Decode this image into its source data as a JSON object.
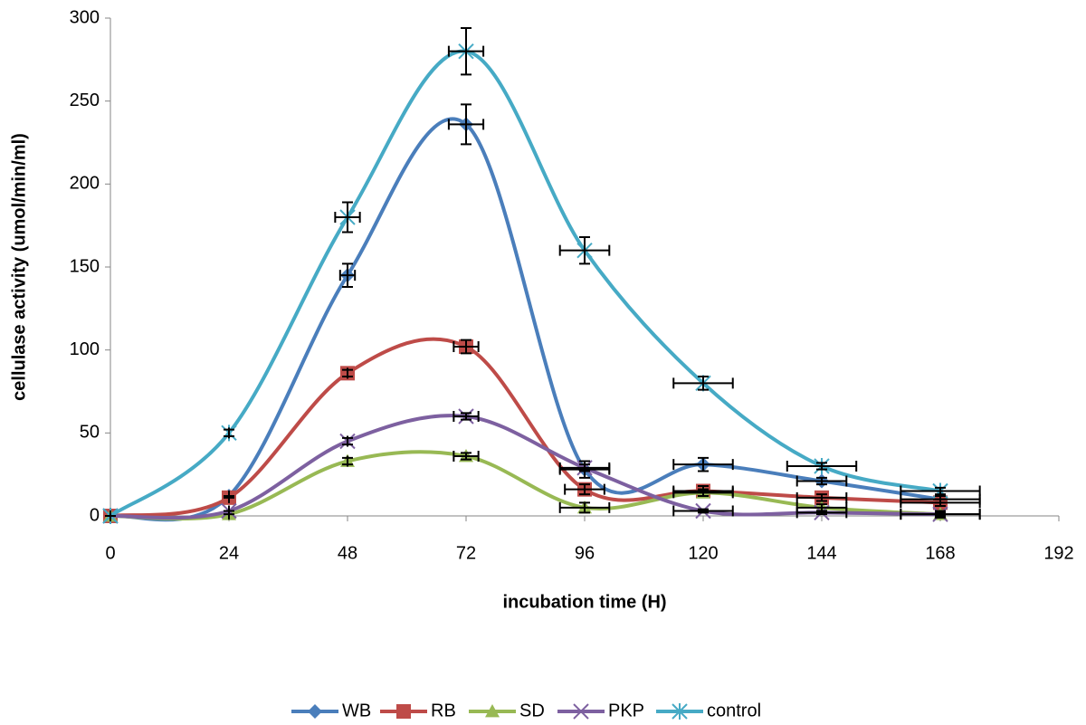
{
  "chart_data": {
    "type": "line",
    "x_label": "incubation time (H)",
    "y_label": "cellulase activity (umol/min/ml)",
    "x": [
      0,
      24,
      48,
      72,
      96,
      120,
      144,
      168
    ],
    "xlim": [
      0,
      192
    ],
    "xticks": [
      0,
      24,
      48,
      72,
      96,
      120,
      144,
      168,
      192
    ],
    "ylim": [
      0,
      300
    ],
    "yticks": [
      0,
      50,
      100,
      150,
      200,
      250,
      300
    ],
    "grid": false,
    "smooth": true,
    "legend": "bottom",
    "series": [
      {
        "name": "WB",
        "color": "#4a7ebb",
        "marker": "diamond",
        "values": [
          0,
          12,
          145,
          236,
          28,
          31,
          21,
          10
        ],
        "yerr": [
          0,
          0,
          7,
          12,
          5,
          4,
          2,
          2
        ],
        "xerr": [
          0,
          0,
          1.5,
          3.5,
          5,
          6,
          5,
          8
        ]
      },
      {
        "name": "RB",
        "color": "#be4b48",
        "marker": "square",
        "values": [
          0,
          11,
          86,
          102,
          16,
          15,
          11,
          8
        ],
        "yerr": [
          0,
          0,
          2,
          4,
          3,
          3,
          2,
          2
        ],
        "xerr": [
          0,
          0,
          0,
          2.5,
          4,
          6,
          5,
          8
        ]
      },
      {
        "name": "SD",
        "color": "#98b954",
        "marker": "triangle",
        "values": [
          0,
          1,
          33,
          36,
          5,
          14,
          5,
          1
        ],
        "yerr": [
          0,
          0,
          2,
          2,
          3,
          2,
          2,
          2
        ],
        "xerr": [
          0,
          0,
          0,
          2.5,
          5,
          6,
          5,
          8
        ]
      },
      {
        "name": "PKP",
        "color": "#7d60a0",
        "marker": "x",
        "values": [
          0,
          3,
          45,
          60,
          29,
          3,
          2,
          1
        ],
        "yerr": [
          0,
          0,
          2,
          2,
          2,
          1,
          1,
          1
        ],
        "xerr": [
          0,
          0,
          0,
          2.5,
          5,
          6,
          5,
          8
        ]
      },
      {
        "name": "control",
        "color": "#46aac5",
        "marker": "star",
        "values": [
          0,
          50,
          180,
          280,
          160,
          80,
          30,
          15
        ],
        "yerr": [
          0,
          2,
          9,
          14,
          8,
          4,
          2,
          2
        ],
        "xerr": [
          0,
          0,
          2.5,
          3.5,
          5,
          6,
          7,
          8
        ]
      }
    ]
  }
}
